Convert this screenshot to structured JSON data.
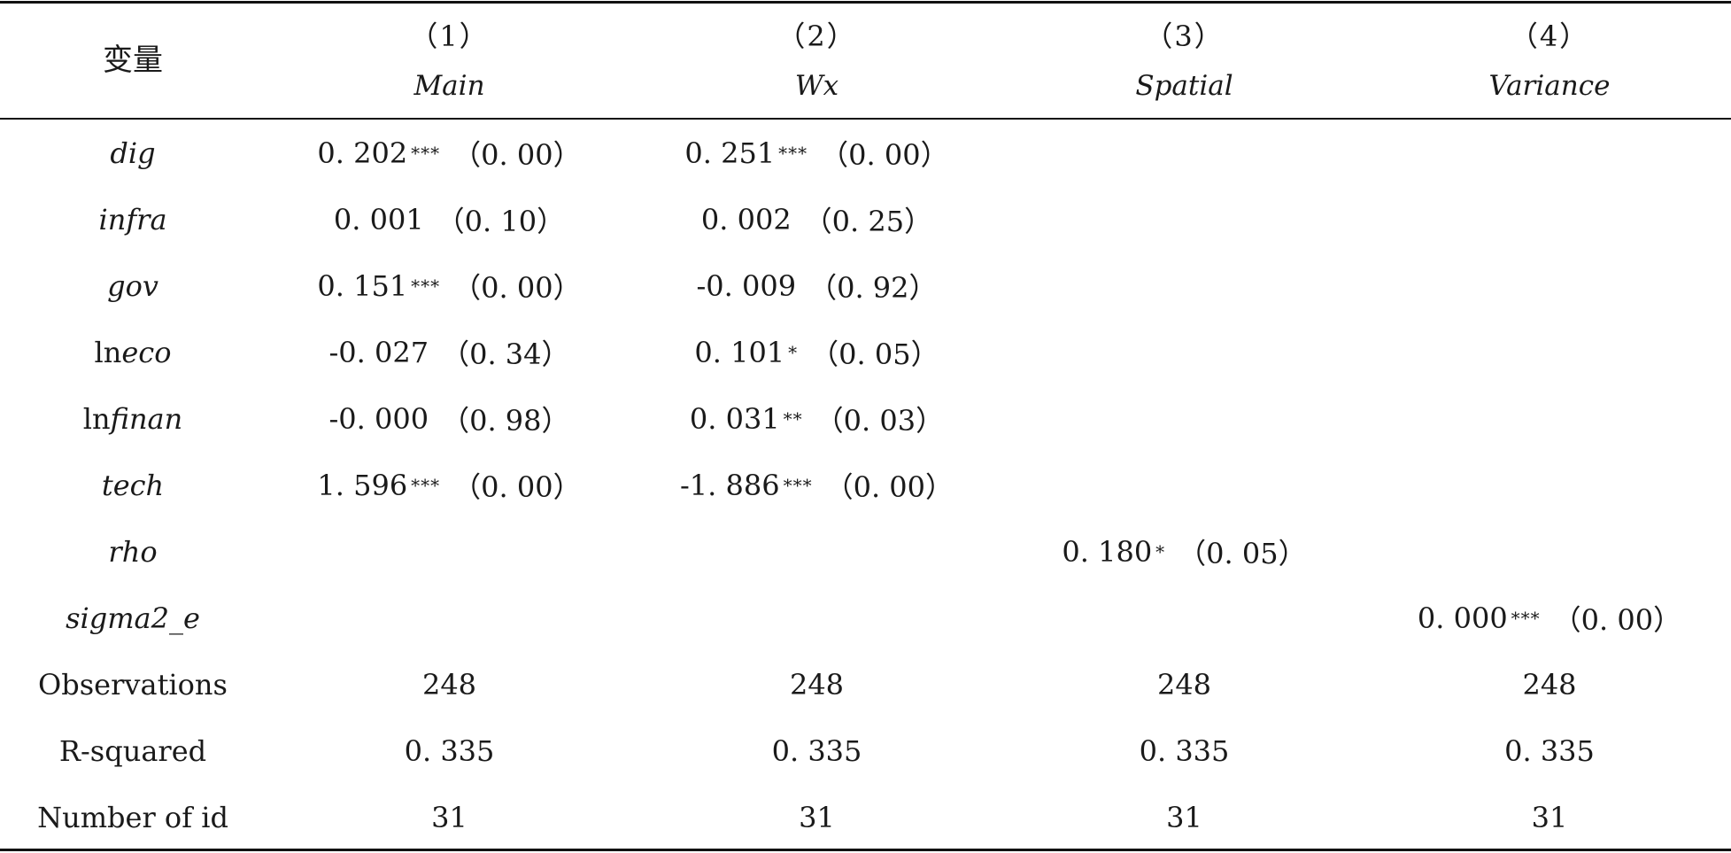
{
  "table": {
    "header": {
      "variable_label": "变量",
      "columns": [
        {
          "num": "（1）",
          "label": "Main"
        },
        {
          "num": "（2）",
          "label": "Wx"
        },
        {
          "num": "（3）",
          "label": "Spatial"
        },
        {
          "num": "（4）",
          "label": "Variance"
        }
      ]
    },
    "rows": [
      {
        "var_prefix": "",
        "var_italic": "dig",
        "c1": {
          "coef": "0. 202",
          "stars": "***",
          "p": "（0. 00）"
        },
        "c2": {
          "coef": "0. 251",
          "stars": "***",
          "p": "（0. 00）"
        },
        "c3": {
          "coef": "",
          "stars": "",
          "p": ""
        },
        "c4": {
          "coef": "",
          "stars": "",
          "p": ""
        }
      },
      {
        "var_prefix": "",
        "var_italic": "infra",
        "c1": {
          "coef": "0. 001",
          "stars": "",
          "p": "（0. 10）"
        },
        "c2": {
          "coef": "0. 002",
          "stars": "",
          "p": "（0. 25）"
        },
        "c3": {
          "coef": "",
          "stars": "",
          "p": ""
        },
        "c4": {
          "coef": "",
          "stars": "",
          "p": ""
        }
      },
      {
        "var_prefix": "",
        "var_italic": "gov",
        "c1": {
          "coef": "0. 151",
          "stars": "***",
          "p": "（0. 00）"
        },
        "c2": {
          "coef": "-0. 009",
          "stars": "",
          "p": "（0. 92）"
        },
        "c3": {
          "coef": "",
          "stars": "",
          "p": ""
        },
        "c4": {
          "coef": "",
          "stars": "",
          "p": ""
        }
      },
      {
        "var_prefix": "ln",
        "var_italic": "eco",
        "c1": {
          "coef": "-0. 027",
          "stars": "",
          "p": "（0. 34）"
        },
        "c2": {
          "coef": "0. 101",
          "stars": "*",
          "p": "（0. 05）"
        },
        "c3": {
          "coef": "",
          "stars": "",
          "p": ""
        },
        "c4": {
          "coef": "",
          "stars": "",
          "p": ""
        }
      },
      {
        "var_prefix": "ln",
        "var_italic": "finan",
        "c1": {
          "coef": "-0. 000",
          "stars": "",
          "p": "（0. 98）"
        },
        "c2": {
          "coef": "0. 031",
          "stars": "**",
          "p": "（0. 03）"
        },
        "c3": {
          "coef": "",
          "stars": "",
          "p": ""
        },
        "c4": {
          "coef": "",
          "stars": "",
          "p": ""
        }
      },
      {
        "var_prefix": "",
        "var_italic": "tech",
        "c1": {
          "coef": "1. 596",
          "stars": "***",
          "p": "（0. 00）"
        },
        "c2": {
          "coef": "-1. 886",
          "stars": "***",
          "p": "（0. 00）"
        },
        "c3": {
          "coef": "",
          "stars": "",
          "p": ""
        },
        "c4": {
          "coef": "",
          "stars": "",
          "p": ""
        }
      },
      {
        "var_prefix": "",
        "var_italic": "rho",
        "c1": {
          "coef": "",
          "stars": "",
          "p": ""
        },
        "c2": {
          "coef": "",
          "stars": "",
          "p": ""
        },
        "c3": {
          "coef": "0. 180",
          "stars": "*",
          "p": "（0. 05）"
        },
        "c4": {
          "coef": "",
          "stars": "",
          "p": ""
        }
      },
      {
        "var_prefix": "",
        "var_italic": "sigma2_e",
        "c1": {
          "coef": "",
          "stars": "",
          "p": ""
        },
        "c2": {
          "coef": "",
          "stars": "",
          "p": ""
        },
        "c3": {
          "coef": "",
          "stars": "",
          "p": ""
        },
        "c4": {
          "coef": "0. 000",
          "stars": "***",
          "p": "（0. 00）"
        }
      }
    ],
    "stats_rows": [
      {
        "label": "Observations",
        "values": [
          "248",
          "248",
          "248",
          "248"
        ]
      },
      {
        "label": "R-squared",
        "values": [
          "0. 335",
          "0. 335",
          "0. 335",
          "0. 335"
        ]
      },
      {
        "label": "Number of id",
        "values": [
          "31",
          "31",
          "31",
          "31"
        ]
      }
    ]
  }
}
